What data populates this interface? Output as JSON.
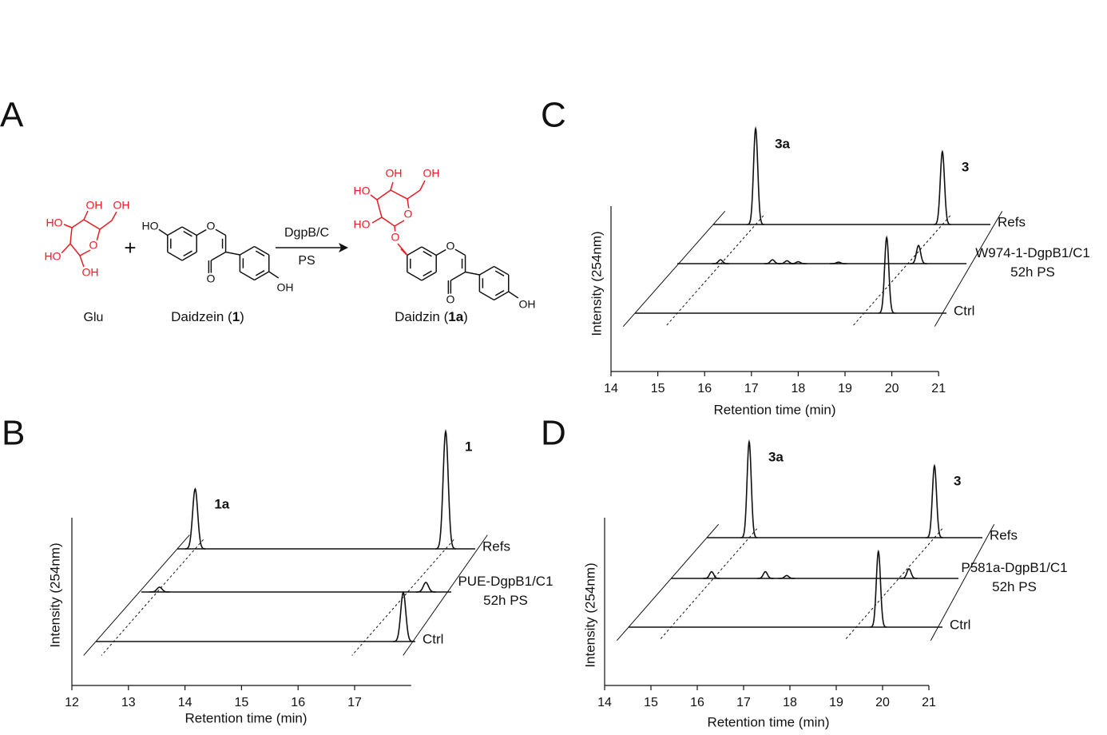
{
  "panels": [
    "A",
    "B",
    "C",
    "D"
  ],
  "scheme": {
    "glucose": {
      "atoms": [
        "OH",
        "OH",
        "HO",
        "HO",
        "OH",
        "O"
      ],
      "name": "Glu"
    },
    "plus": "+",
    "daidzein": {
      "atoms": [
        "HO",
        "O",
        "O",
        "OH"
      ],
      "name": {
        "text": "Daidzein (",
        "bold": "1",
        "tail": ")"
      }
    },
    "arrow_top": "DgpB/C",
    "arrow_bottom": "PS",
    "daidzin": {
      "sugar_atoms": [
        "OH",
        "OH",
        "HO",
        "HO",
        "O",
        "O"
      ],
      "atoms": [
        "O",
        "O",
        "OH"
      ],
      "name": {
        "text": "Daidzin (",
        "bold": "1a",
        "tail": ")"
      }
    }
  },
  "chart_data": [
    {
      "type": "chromatogram",
      "xlabel": "Retention time (min)",
      "ylabel": "Intensity (254nm)",
      "xlim": [
        12,
        18
      ],
      "xticks": [
        12,
        13,
        14,
        15,
        16,
        17
      ],
      "series": [
        {
          "name": "Refs",
          "peaks": [
            {
              "rt": 14.18,
              "height": 0.5,
              "label": "1a"
            },
            {
              "rt": 18.61,
              "height": 0.98,
              "label": "1"
            }
          ]
        },
        {
          "name": "PUE-DgpB1/C1\n52h PS",
          "peaks": [
            {
              "rt": 13.55,
              "height": 0.04
            },
            {
              "rt": 18.26,
              "height": 0.08
            }
          ]
        },
        {
          "name": "Ctrl",
          "peaks": [
            {
              "rt": 17.86,
              "height": 0.41
            }
          ]
        }
      ]
    },
    {
      "type": "chromatogram",
      "xlabel": "Retention time (min)",
      "ylabel": "Intensity (254nm)",
      "xlim": [
        14,
        21
      ],
      "xticks": [
        14,
        15,
        16,
        17,
        18,
        19,
        20,
        21
      ],
      "series": [
        {
          "name": "Refs",
          "peaks": [
            {
              "rt": 17.09,
              "height": 1.0,
              "label": "3a"
            },
            {
              "rt": 21.08,
              "height": 0.76,
              "label": "3"
            }
          ]
        },
        {
          "name": "W974-1-DgpB1/C1\n52h PS",
          "peaks": [
            {
              "rt": 16.34,
              "height": 0.04
            },
            {
              "rt": 17.45,
              "height": 0.04
            },
            {
              "rt": 17.76,
              "height": 0.03
            },
            {
              "rt": 18.0,
              "height": 0.02
            },
            {
              "rt": 18.86,
              "height": 0.015
            },
            {
              "rt": 20.57,
              "height": 0.19
            }
          ]
        },
        {
          "name": "Ctrl",
          "peaks": [
            {
              "rt": 19.89,
              "height": 0.79
            }
          ]
        }
      ]
    },
    {
      "type": "chromatogram",
      "xlabel": "Retention time (min)",
      "ylabel": "Intensity (254nm)",
      "xlim": [
        14,
        21
      ],
      "xticks": [
        14,
        15,
        16,
        17,
        18,
        19,
        20,
        21
      ],
      "series": [
        {
          "name": "Refs",
          "peaks": [
            {
              "rt": 17.12,
              "height": 1.0,
              "label": "3a"
            },
            {
              "rt": 21.12,
              "height": 0.75,
              "label": "3"
            }
          ]
        },
        {
          "name": "P581a-DgpB1/C1\n52h PS",
          "peaks": [
            {
              "rt": 16.31,
              "height": 0.07
            },
            {
              "rt": 17.47,
              "height": 0.07
            },
            {
              "rt": 17.93,
              "height": 0.03
            },
            {
              "rt": 20.57,
              "height": 0.1
            }
          ]
        },
        {
          "name": "Ctrl",
          "peaks": [
            {
              "rt": 19.91,
              "height": 0.79
            }
          ]
        }
      ]
    }
  ]
}
